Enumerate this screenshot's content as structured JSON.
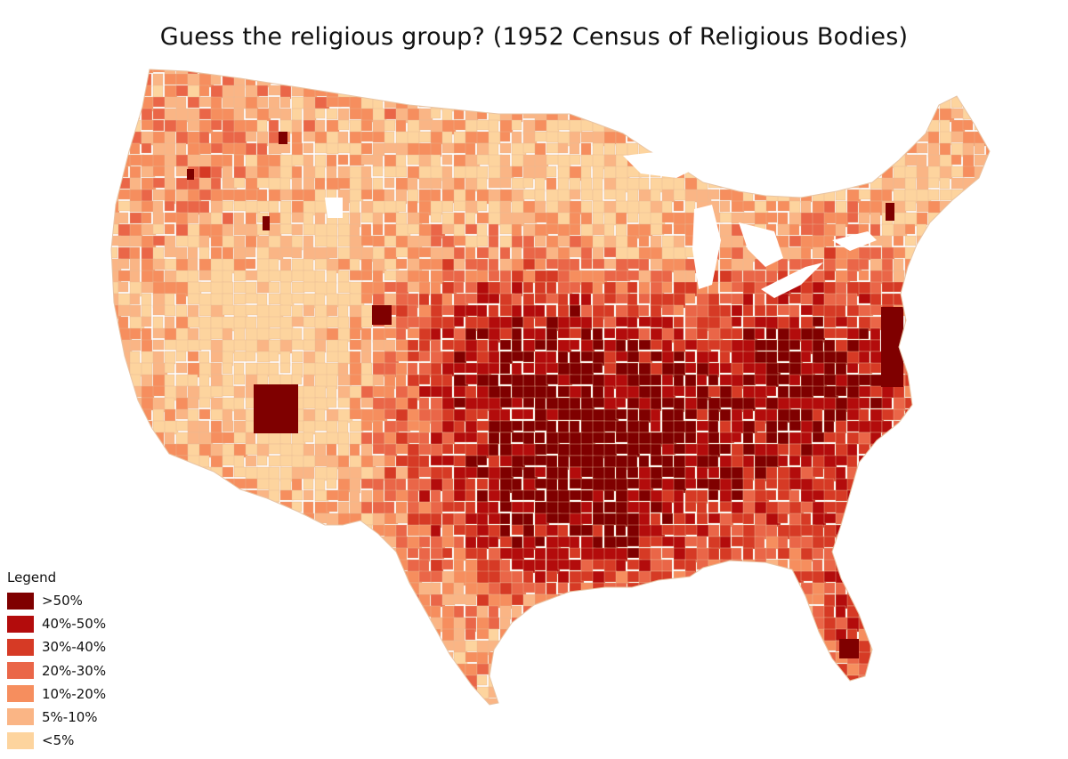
{
  "title": "Guess the religious group? (1952 Census of Religious Bodies)",
  "legend": {
    "title": "Legend",
    "items": [
      {
        "label": ">50%",
        "color": "#7f0000"
      },
      {
        "label": "40%-50%",
        "color": "#b30c0c"
      },
      {
        "label": "30%-40%",
        "color": "#d63a25"
      },
      {
        "label": "20%-30%",
        "color": "#ea6648"
      },
      {
        "label": "10%-20%",
        "color": "#f68e5e"
      },
      {
        "label": "5%-10%",
        "color": "#fab585"
      },
      {
        "label": "<5%",
        "color": "#fdd49e"
      }
    ]
  },
  "map": {
    "subject": "counties of the contiguous United States",
    "high_share_areas": [
      "South",
      "Plains",
      "Mid-Atlantic",
      "Florida"
    ],
    "low_share_areas": [
      "Mountain West",
      "Upper Midwest",
      "New England"
    ]
  }
}
